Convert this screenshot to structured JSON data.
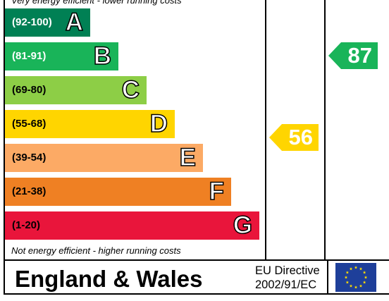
{
  "chart_data": {
    "type": "bar",
    "top_note": "Very energy efficient - lower running costs",
    "bottom_note": "Not energy efficient - higher running costs",
    "bands": [
      {
        "range": "(92-100)",
        "letter": "A",
        "color": "#008054",
        "range_color": "#ffffff"
      },
      {
        "range": "(81-91)",
        "letter": "B",
        "color": "#19b459",
        "range_color": "#ffffff"
      },
      {
        "range": "(69-80)",
        "letter": "C",
        "color": "#8dce46",
        "range_color": "#000000"
      },
      {
        "range": "(55-68)",
        "letter": "D",
        "color": "#ffd500",
        "range_color": "#000000"
      },
      {
        "range": "(39-54)",
        "letter": "E",
        "color": "#fcaa65",
        "range_color": "#000000"
      },
      {
        "range": "(21-38)",
        "letter": "F",
        "color": "#ef8023",
        "range_color": "#000000"
      },
      {
        "range": "(1-20)",
        "letter": "G",
        "color": "#e9153b",
        "range_color": "#000000"
      }
    ],
    "current": {
      "value": "56",
      "color": "#ffd500"
    },
    "potential": {
      "value": "87",
      "color": "#19b459"
    }
  },
  "footer": {
    "region": "England & Wales",
    "directive_line1": "EU Directive",
    "directive_line2": "2002/91/EC"
  }
}
